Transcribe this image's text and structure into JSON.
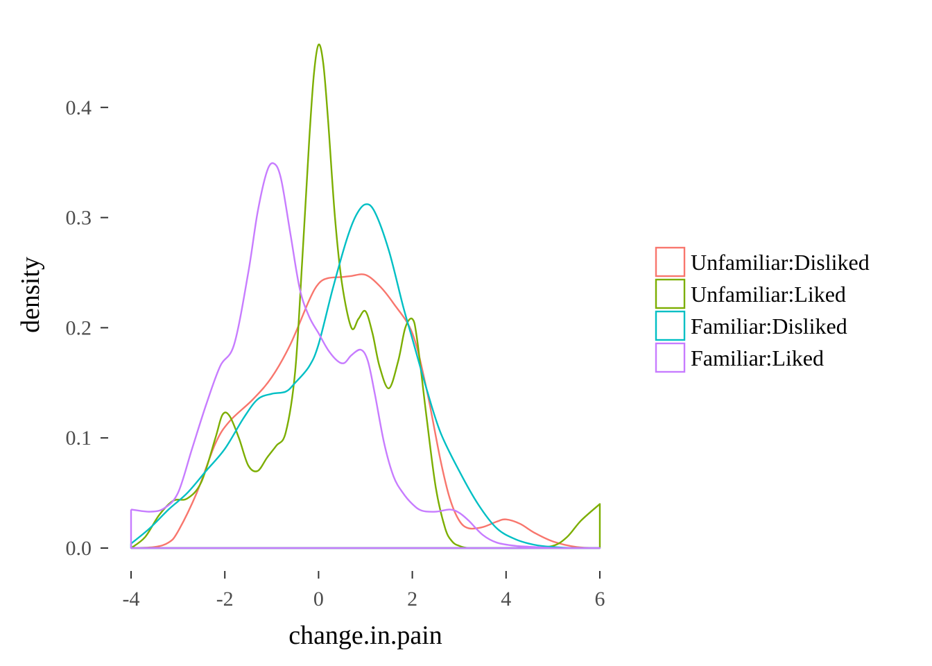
{
  "chart_data": {
    "type": "line",
    "subtype": "density",
    "title": "",
    "xlabel": "change.in.pain",
    "ylabel": "density",
    "xlim": [
      -4,
      6
    ],
    "ylim": [
      0,
      0.46
    ],
    "xticks": [
      -4,
      -2,
      0,
      2,
      4,
      6
    ],
    "xtick_labels": [
      "-4",
      "-2",
      "0",
      "2",
      "4",
      "6"
    ],
    "yticks": [
      0,
      0.1,
      0.2,
      0.3,
      0.4
    ],
    "ytick_labels": [
      "0.0",
      "0.1",
      "0.2",
      "0.3",
      "0.4"
    ],
    "grid": false,
    "legend_position": "right",
    "series": [
      {
        "name": "Unfamiliar:Disliked",
        "color": "#F8766D",
        "x": [
          -4,
          -3.5,
          -3.2,
          -3,
          -2.6,
          -2.2,
          -1.9,
          -1.4,
          -1,
          -0.6,
          -0.2,
          0,
          0.2,
          0.5,
          0.7,
          1,
          1.3,
          1.6,
          2,
          2.3,
          2.6,
          2.8,
          3,
          3.2,
          3.5,
          3.8,
          4,
          4.3,
          4.6,
          5,
          5.5,
          6
        ],
        "y": [
          0,
          0.001,
          0.005,
          0.015,
          0.05,
          0.095,
          0.115,
          0.135,
          0.155,
          0.185,
          0.225,
          0.24,
          0.245,
          0.246,
          0.247,
          0.248,
          0.238,
          0.222,
          0.195,
          0.145,
          0.08,
          0.045,
          0.025,
          0.018,
          0.019,
          0.024,
          0.026,
          0.022,
          0.014,
          0.006,
          0.001,
          0
        ]
      },
      {
        "name": "Unfamiliar:Liked",
        "color": "#7CAE00",
        "x": [
          -4,
          -3.7,
          -3.4,
          -3.1,
          -2.8,
          -2.5,
          -2.2,
          -2.05,
          -1.9,
          -1.7,
          -1.5,
          -1.3,
          -1.1,
          -0.9,
          -0.7,
          -0.5,
          -0.35,
          -0.2,
          -0.1,
          0,
          0.1,
          0.2,
          0.35,
          0.5,
          0.7,
          0.85,
          1,
          1.15,
          1.3,
          1.5,
          1.7,
          1.85,
          2,
          2.1,
          2.3,
          2.5,
          2.7,
          2.85,
          3,
          3.2,
          3.5,
          4,
          4.5,
          5,
          5.3,
          5.6,
          6
        ],
        "y": [
          0,
          0.01,
          0.03,
          0.043,
          0.045,
          0.06,
          0.1,
          0.121,
          0.12,
          0.1,
          0.075,
          0.07,
          0.082,
          0.093,
          0.105,
          0.16,
          0.26,
          0.37,
          0.43,
          0.457,
          0.44,
          0.39,
          0.3,
          0.24,
          0.2,
          0.208,
          0.215,
          0.195,
          0.165,
          0.145,
          0.17,
          0.2,
          0.208,
          0.19,
          0.12,
          0.055,
          0.018,
          0.006,
          0.002,
          0,
          0,
          0,
          0,
          0.002,
          0.01,
          0.025,
          0.04
        ]
      },
      {
        "name": "Familiar:Disliked",
        "color": "#00BFC4",
        "x": [
          -4,
          -3.6,
          -3.2,
          -2.8,
          -2.4,
          -2,
          -1.6,
          -1.3,
          -1,
          -0.7,
          -0.5,
          -0.2,
          0,
          0.3,
          0.6,
          0.8,
          1,
          1.2,
          1.5,
          1.8,
          2,
          2.3,
          2.6,
          3,
          3.4,
          3.8,
          4.2,
          4.6,
          5,
          5.5,
          6
        ],
        "y": [
          0.004,
          0.018,
          0.035,
          0.05,
          0.07,
          0.09,
          0.118,
          0.135,
          0.14,
          0.142,
          0.15,
          0.165,
          0.185,
          0.235,
          0.28,
          0.302,
          0.312,
          0.305,
          0.27,
          0.22,
          0.19,
          0.145,
          0.105,
          0.07,
          0.04,
          0.018,
          0.008,
          0.003,
          0.001,
          0,
          0
        ]
      },
      {
        "name": "Familiar:Liked",
        "color": "#C77CFF",
        "x": [
          -4,
          -3.6,
          -3.3,
          -3,
          -2.7,
          -2.4,
          -2.1,
          -1.8,
          -1.5,
          -1.3,
          -1.1,
          -0.95,
          -0.8,
          -0.6,
          -0.4,
          -0.2,
          0,
          0.2,
          0.4,
          0.55,
          0.7,
          0.9,
          1.05,
          1.2,
          1.4,
          1.6,
          1.8,
          2,
          2.2,
          2.5,
          2.8,
          3,
          3.2,
          3.5,
          3.8,
          4.2,
          4.6,
          5,
          5.5,
          6
        ],
        "y": [
          0.035,
          0.033,
          0.036,
          0.05,
          0.09,
          0.13,
          0.165,
          0.185,
          0.25,
          0.305,
          0.342,
          0.349,
          0.335,
          0.285,
          0.235,
          0.21,
          0.195,
          0.18,
          0.17,
          0.168,
          0.175,
          0.18,
          0.17,
          0.14,
          0.095,
          0.065,
          0.05,
          0.04,
          0.034,
          0.033,
          0.035,
          0.032,
          0.025,
          0.012,
          0.005,
          0.002,
          0.001,
          0,
          0,
          0
        ]
      }
    ]
  }
}
